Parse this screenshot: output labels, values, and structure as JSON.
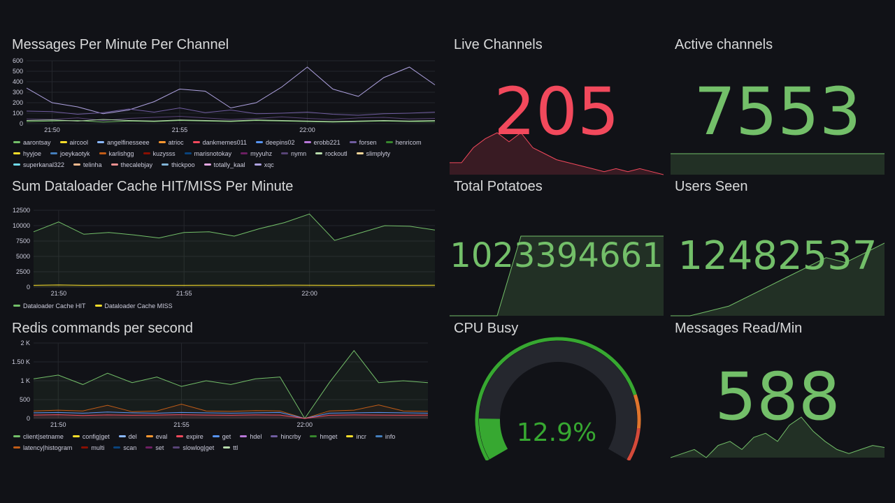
{
  "colors": {
    "green": "#73bf69",
    "red": "#f2495c",
    "bg": "#111217",
    "grid": "#26272d",
    "text": "#ccccdc"
  },
  "panels": {
    "messages_per_minute": {
      "title": "Messages Per Minute Per Channel",
      "y_ticks": [
        "600",
        "500",
        "400",
        "300",
        "200",
        "100",
        "0"
      ],
      "x_ticks": [
        "21:50",
        "21:55",
        "22:00"
      ],
      "legend": [
        {
          "label": "aarontsay",
          "color": "#73bf69"
        },
        {
          "label": "aircool",
          "color": "#fade2a"
        },
        {
          "label": "angelfinesseee",
          "color": "#8ab8ff"
        },
        {
          "label": "atrioc",
          "color": "#ff9830"
        },
        {
          "label": "dankmemes011",
          "color": "#f2495c"
        },
        {
          "label": "deepins02",
          "color": "#5794f2"
        },
        {
          "label": "erobb221",
          "color": "#b877d9"
        },
        {
          "label": "forsen",
          "color": "#705da0"
        },
        {
          "label": "henricom",
          "color": "#37872d"
        },
        {
          "label": "hyyjoe",
          "color": "#fade2a"
        },
        {
          "label": "joeykaotyk",
          "color": "#447ebc"
        },
        {
          "label": "karlishgg",
          "color": "#c15c17"
        },
        {
          "label": "kuzysss",
          "color": "#890f02"
        },
        {
          "label": "marisnotokay",
          "color": "#0a437c"
        },
        {
          "label": "myyuhz",
          "color": "#6d1f62"
        },
        {
          "label": "nymn",
          "color": "#584477"
        },
        {
          "label": "rockoutl",
          "color": "#b7dbab"
        },
        {
          "label": "slimplyty",
          "color": "#f4d598"
        },
        {
          "label": "superkanal322",
          "color": "#70dbed"
        },
        {
          "label": "telinha",
          "color": "#f9ba8f"
        },
        {
          "label": "thecalebjay",
          "color": "#f29191"
        },
        {
          "label": "thickpoo",
          "color": "#82b5d8"
        },
        {
          "label": "totally_kaal",
          "color": "#e5a8e2"
        },
        {
          "label": "xqc",
          "color": "#aea2e0"
        }
      ]
    },
    "dataloader": {
      "title": "Sum Dataloader Cache HIT/MISS Per Minute",
      "y_ticks": [
        "12500",
        "10000",
        "7500",
        "5000",
        "2500",
        "0"
      ],
      "x_ticks": [
        "21:50",
        "21:55",
        "22:00"
      ],
      "legend": [
        {
          "label": "Dataloader Cache HIT",
          "color": "#73bf69"
        },
        {
          "label": "Dataloader Cache MISS",
          "color": "#fade2a"
        }
      ]
    },
    "redis": {
      "title": "Redis commands per second",
      "y_ticks": [
        "2 K",
        "1.50 K",
        "1 K",
        "500",
        "0"
      ],
      "x_ticks": [
        "21:50",
        "21:55",
        "22:00"
      ],
      "legend": [
        {
          "label": "client|setname",
          "color": "#73bf69"
        },
        {
          "label": "config|get",
          "color": "#fade2a"
        },
        {
          "label": "del",
          "color": "#8ab8ff"
        },
        {
          "label": "eval",
          "color": "#ff9830"
        },
        {
          "label": "expire",
          "color": "#f2495c"
        },
        {
          "label": "get",
          "color": "#5794f2"
        },
        {
          "label": "hdel",
          "color": "#b877d9"
        },
        {
          "label": "hincrby",
          "color": "#705da0"
        },
        {
          "label": "hmget",
          "color": "#37872d"
        },
        {
          "label": "incr",
          "color": "#fade2a"
        },
        {
          "label": "info",
          "color": "#447ebc"
        },
        {
          "label": "latency|histogram",
          "color": "#c15c17"
        },
        {
          "label": "multi",
          "color": "#890f02"
        },
        {
          "label": "scan",
          "color": "#0a437c"
        },
        {
          "label": "set",
          "color": "#6d1f62"
        },
        {
          "label": "slowlog|get",
          "color": "#584477"
        },
        {
          "label": "ttl",
          "color": "#b7dbab"
        }
      ]
    },
    "live_channels": {
      "title": "Live Channels",
      "value": "205",
      "color": "#f2495c"
    },
    "active_channels": {
      "title": "Active channels",
      "value": "7553",
      "color": "#73bf69"
    },
    "total_potatoes": {
      "title": "Total Potatoes",
      "value": "1023394661",
      "color": "#73bf69"
    },
    "users_seen": {
      "title": "Users Seen",
      "value": "12482537",
      "color": "#73bf69"
    },
    "cpu_busy": {
      "title": "CPU Busy",
      "value": "12.9%",
      "percent": 12.9,
      "color": "#37a831"
    },
    "messages_read": {
      "title": "Messages Read/Min",
      "value": "588",
      "color": "#73bf69"
    }
  },
  "chart_data": [
    {
      "type": "line",
      "title": "Messages Per Minute Per Channel",
      "x": [
        "21:49",
        "21:50",
        "21:51",
        "21:52",
        "21:53",
        "21:54",
        "21:55",
        "21:56",
        "21:57",
        "21:58",
        "21:59",
        "22:00",
        "22:01",
        "22:02",
        "22:03",
        "22:04",
        "22:05"
      ],
      "ylim": [
        0,
        600
      ],
      "series": [
        {
          "name": "xqc",
          "values": [
            340,
            200,
            160,
            95,
            130,
            210,
            330,
            310,
            150,
            200,
            350,
            540,
            330,
            260,
            440,
            540,
            370
          ]
        },
        {
          "name": "forsen",
          "values": [
            120,
            115,
            90,
            105,
            140,
            110,
            150,
            105,
            130,
            95,
            100,
            110,
            90,
            80,
            95,
            100,
            110
          ]
        },
        {
          "name": "nymn",
          "values": [
            45,
            40,
            55,
            30,
            50,
            60,
            70,
            55,
            40,
            50,
            65,
            50,
            40,
            55,
            60,
            45,
            50
          ]
        },
        {
          "name": "aarontsay",
          "values": [
            20,
            25,
            30,
            15,
            25,
            20,
            30,
            25,
            20,
            30,
            25,
            20,
            15,
            20,
            25,
            20,
            20
          ]
        },
        {
          "name": "rockoutl",
          "values": [
            30,
            35,
            25,
            40,
            30,
            25,
            35,
            30,
            25,
            35,
            30,
            25,
            20,
            25,
            30,
            25,
            30
          ]
        }
      ]
    },
    {
      "type": "area",
      "title": "Sum Dataloader Cache HIT/MISS Per Minute",
      "x": [
        "21:49",
        "21:50",
        "21:51",
        "21:52",
        "21:53",
        "21:54",
        "21:55",
        "21:56",
        "21:57",
        "21:58",
        "21:59",
        "22:00",
        "22:01",
        "22:02",
        "22:03",
        "22:04",
        "22:05"
      ],
      "ylim": [
        0,
        12500
      ],
      "series": [
        {
          "name": "Dataloader Cache HIT",
          "values": [
            9000,
            10600,
            8600,
            8900,
            8500,
            8000,
            8900,
            9000,
            8300,
            9500,
            10500,
            11900,
            7600,
            8800,
            10000,
            9900,
            9300
          ]
        },
        {
          "name": "Dataloader Cache MISS",
          "values": [
            300,
            350,
            300,
            320,
            310,
            290,
            300,
            320,
            310,
            300,
            330,
            320,
            300,
            310,
            320,
            300,
            310
          ]
        }
      ]
    },
    {
      "type": "line",
      "title": "Redis commands per second",
      "x": [
        "21:49",
        "21:50",
        "21:51",
        "21:52",
        "21:53",
        "21:54",
        "21:55",
        "21:56",
        "21:57",
        "21:58",
        "21:59",
        "22:00",
        "22:01",
        "22:02",
        "22:03",
        "22:04",
        "22:05"
      ],
      "ylim": [
        0,
        2000
      ],
      "series": [
        {
          "name": "client|setname",
          "values": [
            1050,
            1150,
            900,
            1200,
            950,
            1100,
            850,
            1000,
            900,
            1050,
            1100,
            0,
            950,
            1800,
            950,
            1000,
            950
          ]
        },
        {
          "name": "latency|histogram",
          "values": [
            200,
            220,
            200,
            350,
            180,
            200,
            380,
            200,
            190,
            210,
            200,
            0,
            200,
            220,
            360,
            200,
            190
          ]
        },
        {
          "name": "get",
          "values": [
            150,
            160,
            140,
            170,
            150,
            140,
            160,
            150,
            140,
            150,
            160,
            0,
            140,
            150,
            160,
            150,
            140
          ]
        },
        {
          "name": "expire",
          "values": [
            90,
            100,
            80,
            95,
            85,
            90,
            100,
            90,
            85,
            95,
            90,
            0,
            85,
            95,
            90,
            85,
            90
          ]
        }
      ]
    },
    {
      "type": "area",
      "title": "Live Channels",
      "values": [
        200,
        200,
        205,
        208,
        210,
        207,
        210,
        205,
        203,
        201,
        200,
        199,
        198,
        197,
        198,
        197,
        198,
        197,
        196
      ]
    },
    {
      "type": "area",
      "title": "Active channels",
      "values": [
        7553,
        7553,
        7553,
        7553,
        7553,
        7553,
        7553,
        7553,
        7553,
        7553
      ]
    },
    {
      "type": "area",
      "title": "Total Potatoes",
      "values": [
        0,
        0,
        0,
        1023394661,
        1023394661,
        1023394661,
        1023394661,
        1023394661,
        1023394661,
        1023394661
      ]
    },
    {
      "type": "area",
      "title": "Users Seen",
      "values": [
        0,
        0,
        10,
        20,
        40,
        60,
        80,
        100,
        120,
        110,
        130,
        150
      ]
    },
    {
      "type": "area",
      "title": "Messages Read/Min",
      "values": [
        520,
        540,
        560,
        520,
        580,
        600,
        560,
        620,
        640,
        600,
        680,
        720,
        650,
        600,
        560,
        540,
        560,
        580,
        570
      ]
    }
  ]
}
